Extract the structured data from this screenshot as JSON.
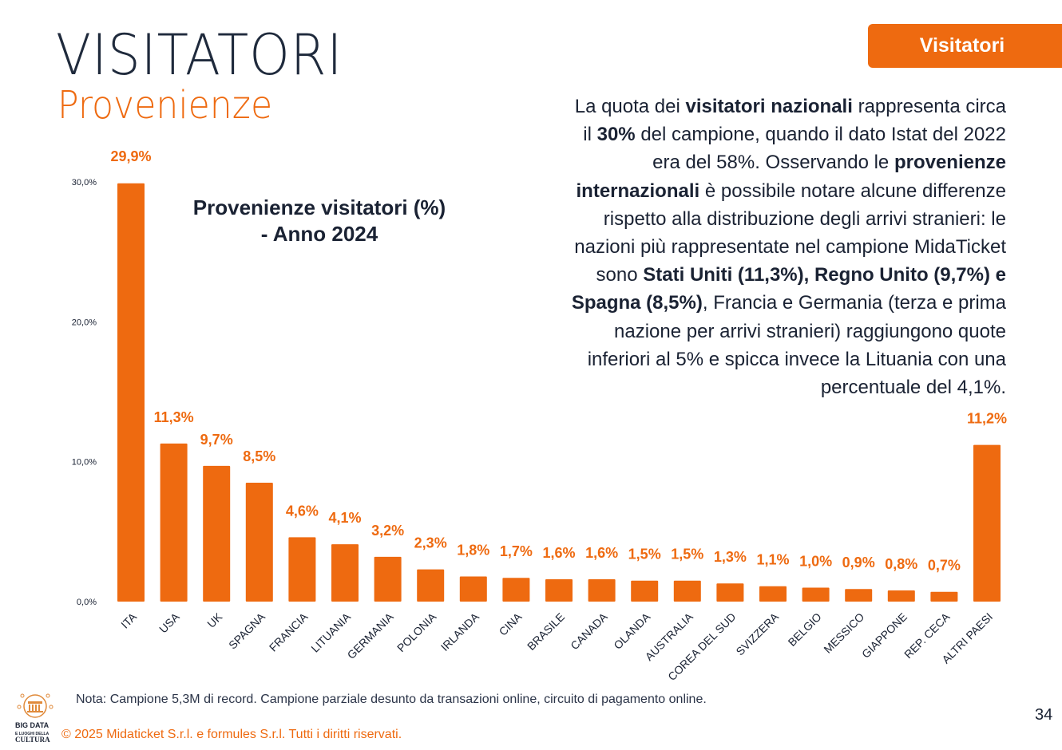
{
  "header": {
    "title": "VISITATORI",
    "subtitle": "Provenienze",
    "badge": "Visitatori"
  },
  "paragraph": [
    [
      {
        "t": "La quota dei "
      },
      {
        "t": "visitatori nazionali",
        "b": true
      },
      {
        "t": " rappresenta circa"
      }
    ],
    [
      {
        "t": "il "
      },
      {
        "t": "30%",
        "b": true
      },
      {
        "t": " del campione, quando il dato Istat del 2022"
      }
    ],
    [
      {
        "t": "era del 58%. Osservando le "
      },
      {
        "t": "provenienze",
        "b": true
      }
    ],
    [
      {
        "t": "internazionali",
        "b": true
      },
      {
        "t": " è possibile notare alcune differenze"
      }
    ],
    [
      {
        "t": "rispetto alla distribuzione degli arrivi stranieri: le"
      }
    ],
    [
      {
        "t": "nazioni più rappresentate nel campione MidaTicket"
      }
    ],
    [
      {
        "t": "sono "
      },
      {
        "t": "Stati Uniti (11,3%), Regno Unito (9,7%) e",
        "b": true
      }
    ],
    [
      {
        "t": "Spagna (8,5%)",
        "b": true
      },
      {
        "t": ", Francia e Germania (terza e prima"
      }
    ],
    [
      {
        "t": "nazione per arrivi stranieri) raggiungono quote"
      }
    ],
    [
      {
        "t": "inferiori al 5% e spicca invece la Lituania con una"
      }
    ],
    [
      {
        "t": "percentuale del 4,1%."
      }
    ]
  ],
  "chart_data": {
    "type": "bar",
    "title_line1": "Provenienze visitatori  (%)",
    "title_line2": "- Anno 2024",
    "categories": [
      "ITA",
      "USA",
      "UK",
      "SPAGNA",
      "FRANCIA",
      "LITUANIA",
      "GERMANIA",
      "POLONIA",
      "IRLANDA",
      "CINA",
      "BRASILE",
      "CANADA",
      "OLANDA",
      "AUSTRALIA",
      "COREA DEL SUD",
      "SVIZZERA",
      "BELGIO",
      "MESSICO",
      "GIAPPONE",
      "REP. CECA",
      "ALTRI PAESI"
    ],
    "values": [
      29.9,
      11.3,
      9.7,
      8.5,
      4.6,
      4.1,
      3.2,
      2.3,
      1.8,
      1.7,
      1.6,
      1.6,
      1.5,
      1.5,
      1.3,
      1.1,
      1.0,
      0.9,
      0.8,
      0.7,
      11.2
    ],
    "data_labels": [
      "29,9%",
      "11,3%",
      "9,7%",
      "8,5%",
      "4,6%",
      "4,1%",
      "3,2%",
      "2,3%",
      "1,8%",
      "1,7%",
      "1,6%",
      "1,6%",
      "1,5%",
      "1,5%",
      "1,3%",
      "1,1%",
      "1,0%",
      "0,9%",
      "0,8%",
      "0,7%",
      "11,2%"
    ],
    "yticks": [
      0,
      10,
      20,
      30
    ],
    "ytick_labels": [
      "0,0%",
      "10,0%",
      "20,0%",
      "30,0%"
    ],
    "ylim": [
      0,
      30
    ],
    "grid": false,
    "bar_color": "#ee6a10"
  },
  "footer": {
    "note": "Nota: Campione 5,3M di record. Campione parziale desunto da transazioni online, circuito di pagamento online.",
    "copyright": "© 2025 Midaticket S.r.l. e formules S.r.l. Tutti i diritti riservati.",
    "page": "34",
    "logo_text": "BIG DATA E LUOGHI DELLA CULTURA"
  },
  "colors": {
    "accent": "#ee6a10",
    "text": "#1a2233"
  }
}
